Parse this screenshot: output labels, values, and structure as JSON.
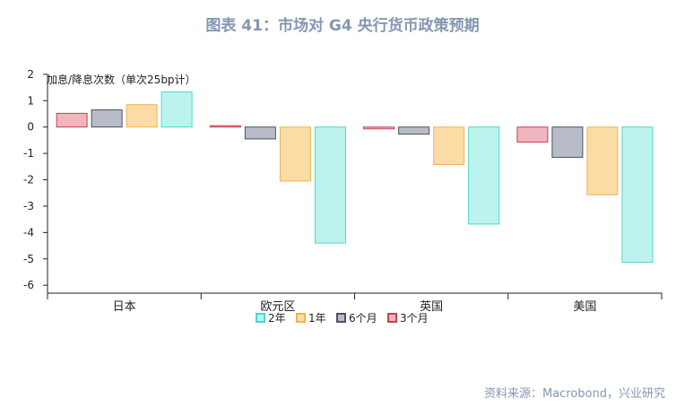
{
  "title": "图表 41：市场对 G4 央行货币政策预期",
  "source": "资料来源：Macrobond，兴业研究",
  "colors": {
    "2y_fill": "#bdf3ef",
    "2y_stroke": "#4fd6cc",
    "1y_fill": "#fbdca5",
    "1y_stroke": "#f0b452",
    "6m_fill": "#b7bcc8",
    "6m_stroke": "#4a5266",
    "3m_fill": "#efb6bf",
    "3m_stroke": "#c9404f",
    "axis": "#222222"
  },
  "chart_data": {
    "type": "bar",
    "ylabel": "加息/降息次数（单次25bp计）",
    "ylim": [
      -6.3,
      2.2
    ],
    "yticks": [
      2,
      1,
      0,
      -1,
      -2,
      -3,
      -4,
      -5,
      -6
    ],
    "categories": [
      "日本",
      "欧元区",
      "英国",
      "美国"
    ],
    "legend_position": "bottom",
    "series": [
      {
        "name": "3个月",
        "key": "3m",
        "values": [
          0.52,
          0.05,
          -0.07,
          -0.57
        ]
      },
      {
        "name": "6个月",
        "key": "6m",
        "values": [
          0.65,
          -0.45,
          -0.27,
          -1.15
        ]
      },
      {
        "name": "1年",
        "key": "1y",
        "values": [
          0.85,
          -2.05,
          -1.42,
          -2.57
        ]
      },
      {
        "name": "2年",
        "key": "2y",
        "values": [
          1.33,
          -4.4,
          -3.68,
          -5.13
        ]
      }
    ],
    "legend_order": [
      "2y",
      "1y",
      "6m",
      "3m"
    ]
  }
}
